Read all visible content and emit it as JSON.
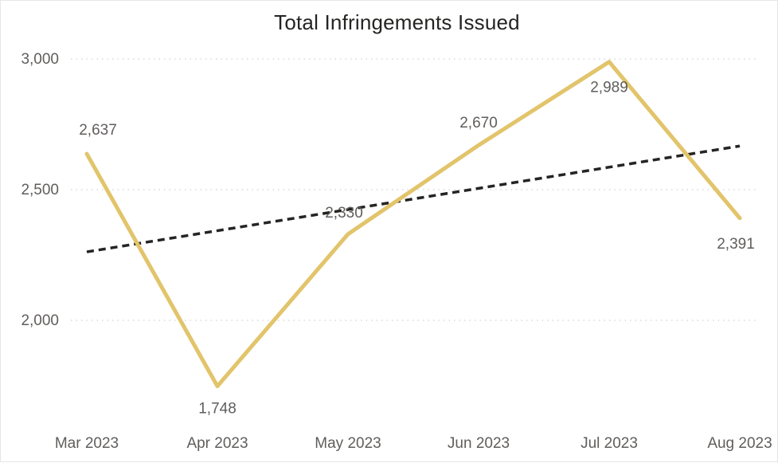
{
  "chart_data": {
    "type": "line",
    "title": "Total Infringements Issued",
    "categories": [
      "Mar 2023",
      "Apr 2023",
      "May 2023",
      "Jun 2023",
      "Jul 2023",
      "Aug 2023"
    ],
    "series": [
      {
        "values": [
          2637,
          1748,
          2330,
          2670,
          2989,
          2391
        ],
        "labels": [
          "2,637",
          "1,748",
          "2,330",
          "2,670",
          "2,989",
          "2,391"
        ],
        "color": "#e2c46b"
      }
    ],
    "trendline": {
      "style": "dashed",
      "color": "#252423",
      "start": 2262,
      "end": 2667
    },
    "yticks": [
      {
        "value": 2000,
        "label": "2,000"
      },
      {
        "value": 2500,
        "label": "2,500"
      },
      {
        "value": 3000,
        "label": "3,000"
      }
    ],
    "ylim": [
      1760,
      3000
    ],
    "gridlines": "dotted",
    "gridline_color": "#d9d9d9",
    "legend": "none"
  }
}
